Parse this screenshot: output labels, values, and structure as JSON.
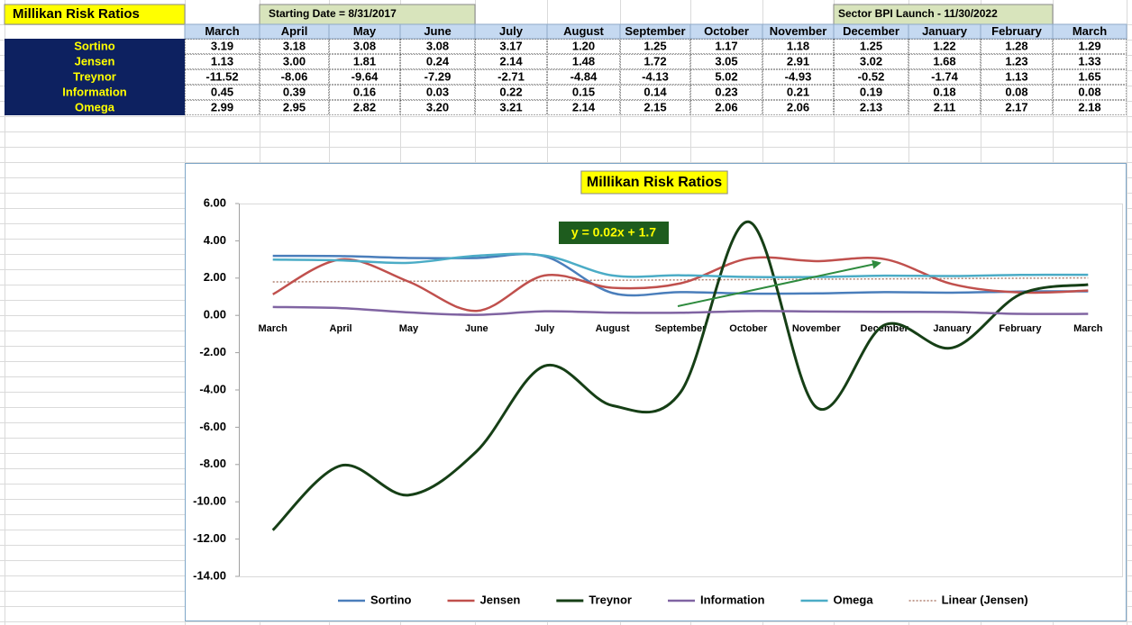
{
  "title": "Millikan Risk Ratios",
  "notes": [
    "Starting Date = 8/31/2017",
    "Sector BPI Launch - 11/30/2022"
  ],
  "table": {
    "columns": [
      "March",
      "April",
      "May",
      "June",
      "July",
      "August",
      "September",
      "October",
      "November",
      "December",
      "January",
      "February",
      "March"
    ],
    "rows": [
      {
        "label": "Sortino",
        "cells": [
          "3.19",
          "3.18",
          "3.08",
          "3.08",
          "3.17",
          "1.20",
          "1.25",
          "1.17",
          "1.18",
          "1.25",
          "1.22",
          "1.28",
          "1.29"
        ]
      },
      {
        "label": "Jensen",
        "cells": [
          "1.13",
          "3.00",
          "1.81",
          "0.24",
          "2.14",
          "1.48",
          "1.72",
          "3.05",
          "2.91",
          "3.02",
          "1.68",
          "1.23",
          "1.33"
        ]
      },
      {
        "label": "Treynor",
        "cells": [
          "-11.52",
          "-8.06",
          "-9.64",
          "-7.29",
          "-2.71",
          "-4.84",
          "-4.13",
          "5.02",
          "-4.93",
          "-0.52",
          "-1.74",
          "1.13",
          "1.65"
        ]
      },
      {
        "label": "Information",
        "cells": [
          "0.45",
          "0.39",
          "0.16",
          "0.03",
          "0.22",
          "0.15",
          "0.14",
          "0.23",
          "0.21",
          "0.19",
          "0.18",
          "0.08",
          "0.08"
        ]
      },
      {
        "label": "Omega",
        "cells": [
          "2.99",
          "2.95",
          "2.82",
          "3.20",
          "3.21",
          "2.14",
          "2.15",
          "2.06",
          "2.06",
          "2.13",
          "2.11",
          "2.17",
          "2.18"
        ]
      }
    ]
  },
  "chart_data": {
    "type": "line",
    "smooth": true,
    "title": "Millikan Risk Ratios",
    "categories": [
      "March",
      "April",
      "May",
      "June",
      "July",
      "August",
      "September",
      "October",
      "November",
      "December",
      "January",
      "February",
      "March"
    ],
    "series": [
      {
        "name": "Sortino",
        "color": "#4a7ebb",
        "values": [
          3.19,
          3.18,
          3.08,
          3.08,
          3.17,
          1.2,
          1.25,
          1.17,
          1.18,
          1.25,
          1.22,
          1.28,
          1.29
        ]
      },
      {
        "name": "Jensen",
        "color": "#c0504d",
        "values": [
          1.13,
          3.0,
          1.81,
          0.24,
          2.14,
          1.48,
          1.72,
          3.05,
          2.91,
          3.02,
          1.68,
          1.23,
          1.33
        ]
      },
      {
        "name": "Treynor",
        "color": "#163f16",
        "values": [
          -11.52,
          -8.06,
          -9.64,
          -7.29,
          -2.71,
          -4.84,
          -4.13,
          5.02,
          -4.93,
          -0.52,
          -1.74,
          1.13,
          1.65
        ]
      },
      {
        "name": "Information",
        "color": "#8064a2",
        "values": [
          0.45,
          0.39,
          0.16,
          0.03,
          0.22,
          0.15,
          0.14,
          0.23,
          0.21,
          0.19,
          0.18,
          0.08,
          0.08
        ]
      },
      {
        "name": "Omega",
        "color": "#4bacc6",
        "values": [
          2.99,
          2.95,
          2.82,
          3.2,
          3.21,
          2.14,
          2.15,
          2.06,
          2.06,
          2.13,
          2.11,
          2.17,
          2.18
        ]
      }
    ],
    "ylim": [
      -14,
      6
    ],
    "yticks": [
      {
        "value": 6,
        "label": "6.00"
      },
      {
        "value": 4,
        "label": "4.00"
      },
      {
        "value": 2,
        "label": "2.00"
      },
      {
        "value": 0,
        "label": "0.00"
      },
      {
        "value": -2,
        "label": "-2.00"
      },
      {
        "value": -4,
        "label": "-4.00"
      },
      {
        "value": -6,
        "label": "-6.00"
      },
      {
        "value": -8,
        "label": "-8.00"
      },
      {
        "value": -10,
        "label": "-10.00"
      },
      {
        "value": -12,
        "label": "-12.00"
      },
      {
        "value": -14,
        "label": "-14.00"
      }
    ],
    "grid": false,
    "legend": "bottom",
    "trendline": {
      "name": "Linear (Jensen)",
      "series": "Jensen",
      "color": "#b08070",
      "equation": "y = 0.02x + 1.7"
    }
  }
}
